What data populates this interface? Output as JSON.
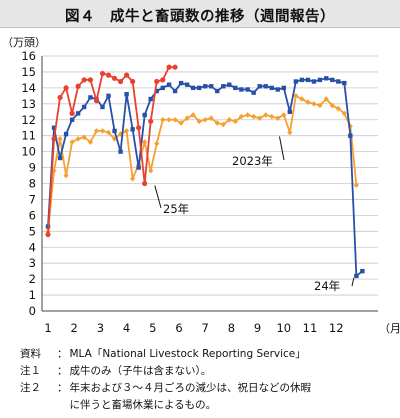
{
  "title": "図４　成牛と畜頭数の推移（週間報告）",
  "chart_data": {
    "type": "line",
    "title": "図４　成牛と畜頭数の推移（週間報告）",
    "ylabel": "（万頭）",
    "xlabel": "（月）",
    "ylim": [
      0,
      16
    ],
    "yticks": [
      0,
      1,
      2,
      3,
      4,
      5,
      6,
      7,
      8,
      9,
      10,
      11,
      12,
      13,
      14,
      15,
      16
    ],
    "xlim": [
      1,
      13
    ],
    "xticks": [
      1,
      2,
      3,
      4,
      5,
      6,
      7,
      8,
      9,
      10,
      11,
      12
    ],
    "grid": "horizontal",
    "series": [
      {
        "name": "25年",
        "color": "#e8412f",
        "marker": "circle",
        "x": [
          1.0,
          1.23,
          1.46,
          1.69,
          1.92,
          2.15,
          2.38,
          2.62,
          2.85,
          3.08,
          3.31,
          3.54,
          3.77,
          4.0,
          4.23,
          4.46,
          4.69,
          4.92,
          5.15,
          5.38,
          5.62,
          5.85
        ],
        "values": [
          4.8,
          10.8,
          13.4,
          14.0,
          12.4,
          14.1,
          14.5,
          14.5,
          13.2,
          14.9,
          14.8,
          14.6,
          14.4,
          14.8,
          14.4,
          11.5,
          8.0,
          11.9,
          14.4,
          14.5,
          15.3,
          15.3
        ]
      },
      {
        "name": "2023年",
        "color": "#f5a031",
        "marker": "diamond",
        "x": [
          1.0,
          1.23,
          1.46,
          1.69,
          1.92,
          2.15,
          2.38,
          2.62,
          2.85,
          3.08,
          3.31,
          3.54,
          3.77,
          4.0,
          4.23,
          4.46,
          4.69,
          4.92,
          5.15,
          5.38,
          5.62,
          5.85,
          6.08,
          6.31,
          6.54,
          6.77,
          7.0,
          7.23,
          7.46,
          7.69,
          7.92,
          8.15,
          8.38,
          8.62,
          8.85,
          9.08,
          9.31,
          9.54,
          9.77,
          10.0,
          10.23,
          10.46,
          10.69,
          10.92,
          11.15,
          11.38,
          11.62,
          11.85,
          12.08,
          12.31,
          12.54,
          12.77
        ],
        "values": [
          5.0,
          8.8,
          10.8,
          8.5,
          10.6,
          10.8,
          10.9,
          10.6,
          11.3,
          11.3,
          11.2,
          10.8,
          11.1,
          11.3,
          8.3,
          9.2,
          10.6,
          8.8,
          10.5,
          12.0,
          12.0,
          12.0,
          11.8,
          12.1,
          12.3,
          11.9,
          12.0,
          12.1,
          11.8,
          11.7,
          12.0,
          11.9,
          12.2,
          12.3,
          12.2,
          12.1,
          12.3,
          12.2,
          12.1,
          12.3,
          11.2,
          13.5,
          13.3,
          13.1,
          13.0,
          12.9,
          13.3,
          12.9,
          12.7,
          12.4,
          11.6,
          7.9
        ]
      },
      {
        "name": "24年",
        "color": "#2950a7",
        "marker": "square",
        "x": [
          1.0,
          1.23,
          1.46,
          1.69,
          1.92,
          2.15,
          2.38,
          2.62,
          2.85,
          3.08,
          3.31,
          3.54,
          3.77,
          4.0,
          4.23,
          4.46,
          4.69,
          4.92,
          5.15,
          5.38,
          5.62,
          5.85,
          6.08,
          6.31,
          6.54,
          6.77,
          7.0,
          7.23,
          7.46,
          7.69,
          7.92,
          8.15,
          8.38,
          8.62,
          8.85,
          9.08,
          9.31,
          9.54,
          9.77,
          10.0,
          10.23,
          10.46,
          10.69,
          10.92,
          11.15,
          11.38,
          11.62,
          11.85,
          12.08,
          12.31,
          12.54,
          12.77,
          13.0
        ],
        "values": [
          5.3,
          11.5,
          9.6,
          11.1,
          12.0,
          12.4,
          12.8,
          13.4,
          13.3,
          12.8,
          13.5,
          11.3,
          10.0,
          13.6,
          11.4,
          9.0,
          12.3,
          13.3,
          13.8,
          14.0,
          14.2,
          13.8,
          14.3,
          14.2,
          14.0,
          14.0,
          14.1,
          14.1,
          13.8,
          14.1,
          14.2,
          14.0,
          13.9,
          13.9,
          13.7,
          14.1,
          14.1,
          14.0,
          13.9,
          14.0,
          12.5,
          14.4,
          14.5,
          14.5,
          14.4,
          14.5,
          14.6,
          14.5,
          14.4,
          14.3,
          11.0,
          2.2,
          2.5
        ]
      }
    ],
    "annotations": [
      {
        "text": "2023年",
        "series": "2023年",
        "x": 9.95,
        "value": 11.2
      },
      {
        "text": "25年",
        "series": "25年",
        "x": 5.0,
        "value": 8.0
      },
      {
        "text": "24年",
        "series": "24年",
        "x": 12.75,
        "value": 2.2
      }
    ]
  },
  "notes": [
    {
      "label": "資料",
      "text": "MLA「National Livestock Reporting Service」"
    },
    {
      "label": "注１",
      "text": "成牛のみ（子牛は含まない）。"
    },
    {
      "label": "注２",
      "text": "年末および３～４月ごろの減少は、祝日などの休暇"
    },
    {
      "label": "",
      "text": "に伴うと畜場休業によるもの。"
    }
  ]
}
